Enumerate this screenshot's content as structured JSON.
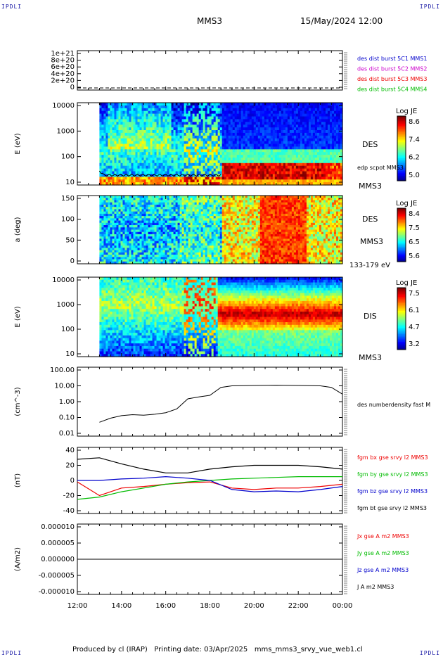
{
  "corner_labels": {
    "tl": "IPDLI",
    "tr": "IPDLI",
    "bl": "IPDLI",
    "br": "IPDLI"
  },
  "header": {
    "spacecraft": "MMS3",
    "datetime": "15/May/2024 12:00"
  },
  "footer": {
    "text": "Produced by cl (IRAP)   Printing date: 03/Apr/2025   mms_mms3_srvy_vue_web1.cl"
  },
  "colors": {
    "mms1": "#0000cc",
    "mms2": "#cc00cc",
    "mms3": "#ee0000",
    "mms4": "#00bb00",
    "black": "#000000"
  },
  "time_axis": [
    "12:00",
    "14:00",
    "16:00",
    "18:00",
    "20:00",
    "22:00",
    "00:00"
  ],
  "chart_data": [
    {
      "type": "line",
      "panel": "burst",
      "yticks": [
        "1e+21",
        "8e+20",
        "6e+20",
        "4e+20",
        "2e+20",
        "0"
      ],
      "ylim": [
        0,
        1e+21
      ],
      "legend": [
        {
          "label": "des dist burst 5C1 MMS1",
          "color": "#0000cc"
        },
        {
          "label": "des dist burst 5C2 MMS2",
          "color": "#cc00cc"
        },
        {
          "label": "des dist burst 5C3 MMS3",
          "color": "#ee0000"
        },
        {
          "label": "des dist burst 5C4 MMS4",
          "color": "#00bb00"
        }
      ]
    },
    {
      "type": "heatmap",
      "panel": "des-energy",
      "ylabel": "E (eV)",
      "yticks": [
        "10000",
        "1000",
        "100",
        "10"
      ],
      "colorbar": {
        "title": "Log JE",
        "ticks": [
          "8.6",
          "7.4",
          "6.2",
          "5.0"
        ]
      },
      "label": "DES",
      "sc": "MMS3",
      "overlay": "edp scpot MMS3"
    },
    {
      "type": "heatmap",
      "panel": "des-pitch",
      "ylabel": "a (deg)",
      "yticks": [
        "150",
        "100",
        "50",
        "0"
      ],
      "colorbar": {
        "title": "Log JE",
        "ticks": [
          "8.4",
          "7.5",
          "6.5",
          "5.6"
        ]
      },
      "label": "DES",
      "sc": "MMS3",
      "range": "133-179 eV"
    },
    {
      "type": "heatmap",
      "panel": "dis-energy",
      "ylabel": "E (eV)",
      "yticks": [
        "10000",
        "1000",
        "100",
        "10"
      ],
      "colorbar": {
        "title": "Log JE",
        "ticks": [
          "7.5",
          "6.1",
          "4.7",
          "3.2"
        ]
      },
      "label": "DIS",
      "sc": "MMS3"
    },
    {
      "type": "line",
      "panel": "density",
      "ylabel": "(cm^-3)",
      "yticks": [
        "100.00",
        "10.00",
        "1.00",
        "0.10",
        "0.01"
      ],
      "legend": [
        {
          "label": "des numberdensity fast M",
          "color": "#000000"
        }
      ],
      "x_hours": [
        13.0,
        13.5,
        14.0,
        14.5,
        15.0,
        15.5,
        16.0,
        16.5,
        17.0,
        17.5,
        18.0,
        18.5,
        19.0,
        20.0,
        21.0,
        22.0,
        23.0,
        23.5,
        24.0
      ],
      "values": [
        0.05,
        0.09,
        0.13,
        0.15,
        0.14,
        0.16,
        0.2,
        0.35,
        1.5,
        2.0,
        2.5,
        8.0,
        10.0,
        10.5,
        11.0,
        10.5,
        10.0,
        8.0,
        3.0
      ]
    },
    {
      "type": "line",
      "panel": "fgm",
      "ylabel": "(nT)",
      "yticks": [
        "40",
        "20",
        "0",
        "-20",
        "-40"
      ],
      "ylim": [
        -50,
        50
      ],
      "legend": [
        {
          "label": "fgm bx gse srvy l2 MMS3",
          "color": "#ee0000"
        },
        {
          "label": "fgm by gse srvy l2 MMS3",
          "color": "#00bb00"
        },
        {
          "label": "fgm bz gse srvy l2 MMS3",
          "color": "#0000cc"
        },
        {
          "label": "fgm bt gse srvy l2 MMS3",
          "color": "#000000"
        }
      ],
      "x_hours": [
        12,
        13,
        14,
        15,
        16,
        17,
        18,
        19,
        20,
        21,
        22,
        23,
        24
      ],
      "series": [
        {
          "name": "fgm bx gse srvy l2 MMS3",
          "values": [
            -2,
            -20,
            -10,
            -8,
            -5,
            -3,
            -2,
            -10,
            -12,
            -10,
            -10,
            -8,
            -5
          ]
        },
        {
          "name": "fgm by gse srvy l2 MMS3",
          "values": [
            -25,
            -22,
            -15,
            -10,
            -5,
            -2,
            0,
            2,
            3,
            4,
            5,
            5,
            5
          ]
        },
        {
          "name": "fgm bz gse srvy l2 MMS3",
          "values": [
            0,
            0,
            2,
            3,
            5,
            3,
            0,
            -12,
            -15,
            -14,
            -15,
            -12,
            -8
          ]
        },
        {
          "name": "fgm bt gse srvy l2 MMS3",
          "values": [
            28,
            30,
            22,
            15,
            10,
            10,
            15,
            18,
            20,
            20,
            20,
            18,
            15
          ]
        }
      ]
    },
    {
      "type": "line",
      "panel": "current",
      "ylabel": "(A/m2)",
      "yticks": [
        "0.000010",
        "0.000005",
        "0.000000",
        "-0.000005",
        "-0.000010"
      ],
      "ylim": [
        -1e-05,
        1e-05
      ],
      "legend": [
        {
          "label": "Jx gse A m2 MMS3",
          "color": "#ee0000"
        },
        {
          "label": "Jy gse A m2 MMS3",
          "color": "#00bb00"
        },
        {
          "label": "Jz gse A m2 MMS3",
          "color": "#0000cc"
        },
        {
          "label": "J A m2 MMS3",
          "color": "#000000"
        }
      ]
    }
  ]
}
